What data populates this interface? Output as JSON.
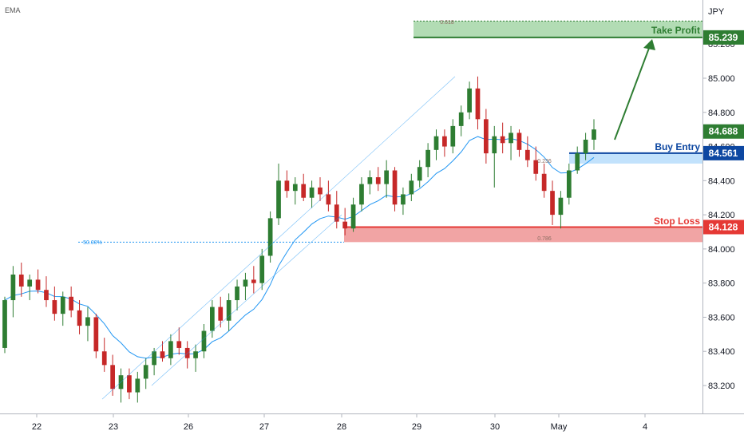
{
  "indicator_label": "EMA",
  "currency": "JPY",
  "colors": {
    "up": "#26a69a",
    "up_candle": "#2e7d32",
    "down": "#c62828",
    "ema": "#2196f3",
    "take_profit": "#2e7d32",
    "buy_entry": "#0d47a1",
    "stop_loss": "#e53935",
    "current": "#2e7d32"
  },
  "annotations": {
    "take_profit": {
      "label": "Take Profit",
      "price": "85.239"
    },
    "buy_entry": {
      "label": "Buy Entry",
      "price": "84.561"
    },
    "stop_loss": {
      "label": "Stop Loss",
      "price": "84.128"
    },
    "current_price": "84.688",
    "fib_top": "0.618",
    "fib_mid": "50.00%",
    "fib_buy": "0.236",
    "fib_stop": "0.786"
  },
  "chart_data": {
    "type": "candlestick",
    "instrument_unit": "JPY",
    "y_ticks": [
      "83.200",
      "83.400",
      "83.600",
      "83.800",
      "84.000",
      "84.200",
      "84.400",
      "84.600",
      "84.800",
      "85.000",
      "85.200"
    ],
    "ylim": [
      83.0,
      85.4
    ],
    "x_ticks": [
      "22",
      "23",
      "26",
      "27",
      "28",
      "29",
      "30",
      "May",
      "4"
    ],
    "levels": {
      "take_profit": 85.239,
      "take_profit_zone_top": 85.335,
      "buy_entry": 84.561,
      "buy_zone_bottom": 84.5,
      "stop_loss": 84.128,
      "stop_zone_bottom": 84.04,
      "fib_50": 84.04,
      "current": 84.688
    },
    "ohlc": [
      [
        83.42,
        83.72,
        83.39,
        83.7
      ],
      [
        83.7,
        83.9,
        83.6,
        83.85
      ],
      [
        83.85,
        83.92,
        83.72,
        83.78
      ],
      [
        83.78,
        83.85,
        83.7,
        83.82
      ],
      [
        83.82,
        83.88,
        83.74,
        83.76
      ],
      [
        83.76,
        83.84,
        83.66,
        83.7
      ],
      [
        83.7,
        83.78,
        83.58,
        83.62
      ],
      [
        83.62,
        83.75,
        83.55,
        83.72
      ],
      [
        83.72,
        83.78,
        83.6,
        83.64
      ],
      [
        83.64,
        83.7,
        83.5,
        83.55
      ],
      [
        83.55,
        83.66,
        83.46,
        83.6
      ],
      [
        83.6,
        83.62,
        83.36,
        83.4
      ],
      [
        83.4,
        83.48,
        83.28,
        83.32
      ],
      [
        83.32,
        83.38,
        83.14,
        83.18
      ],
      [
        83.18,
        83.3,
        83.1,
        83.26
      ],
      [
        83.26,
        83.3,
        83.12,
        83.16
      ],
      [
        83.16,
        83.28,
        83.1,
        83.24
      ],
      [
        83.24,
        83.36,
        83.18,
        83.32
      ],
      [
        83.32,
        83.42,
        83.26,
        83.4
      ],
      [
        83.4,
        83.46,
        83.34,
        83.36
      ],
      [
        83.36,
        83.5,
        83.32,
        83.46
      ],
      [
        83.46,
        83.54,
        83.38,
        83.42
      ],
      [
        83.42,
        83.46,
        83.3,
        83.36
      ],
      [
        83.36,
        83.44,
        83.28,
        83.4
      ],
      [
        83.4,
        83.56,
        83.36,
        83.52
      ],
      [
        83.52,
        83.7,
        83.48,
        83.66
      ],
      [
        83.66,
        83.72,
        83.54,
        83.58
      ],
      [
        83.58,
        83.74,
        83.52,
        83.7
      ],
      [
        83.7,
        83.82,
        83.64,
        83.78
      ],
      [
        83.78,
        83.86,
        83.7,
        83.82
      ],
      [
        83.82,
        83.9,
        83.74,
        83.8
      ],
      [
        83.8,
        84.0,
        83.76,
        83.96
      ],
      [
        83.96,
        84.22,
        83.92,
        84.18
      ],
      [
        84.18,
        84.5,
        84.14,
        84.4
      ],
      [
        84.4,
        84.46,
        84.3,
        84.34
      ],
      [
        84.34,
        84.42,
        84.26,
        84.38
      ],
      [
        84.38,
        84.44,
        84.28,
        84.3
      ],
      [
        84.3,
        84.4,
        84.24,
        84.36
      ],
      [
        84.36,
        84.42,
        84.28,
        84.32
      ],
      [
        84.32,
        84.4,
        84.22,
        84.26
      ],
      [
        84.26,
        84.34,
        84.12,
        84.16
      ],
      [
        84.16,
        84.24,
        84.08,
        84.12
      ],
      [
        84.12,
        84.3,
        84.1,
        84.26
      ],
      [
        84.26,
        84.42,
        84.22,
        84.38
      ],
      [
        84.38,
        84.46,
        84.32,
        84.42
      ],
      [
        84.42,
        84.48,
        84.34,
        84.38
      ],
      [
        84.38,
        84.52,
        84.3,
        84.46
      ],
      [
        84.46,
        84.48,
        84.22,
        84.26
      ],
      [
        84.26,
        84.36,
        84.2,
        84.32
      ],
      [
        84.32,
        84.44,
        84.28,
        84.4
      ],
      [
        84.4,
        84.52,
        84.36,
        84.48
      ],
      [
        84.48,
        84.62,
        84.42,
        84.58
      ],
      [
        84.58,
        84.7,
        84.52,
        84.66
      ],
      [
        84.66,
        84.7,
        84.54,
        84.6
      ],
      [
        84.6,
        84.76,
        84.56,
        84.72
      ],
      [
        84.72,
        84.84,
        84.66,
        84.8
      ],
      [
        84.8,
        84.98,
        84.76,
        84.94
      ],
      [
        84.94,
        85.01,
        84.7,
        84.76
      ],
      [
        84.76,
        84.82,
        84.5,
        84.56
      ],
      [
        84.56,
        84.72,
        84.36,
        84.66
      ],
      [
        84.66,
        84.74,
        84.56,
        84.62
      ],
      [
        84.62,
        84.72,
        84.52,
        84.68
      ],
      [
        84.68,
        84.7,
        84.54,
        84.58
      ],
      [
        84.58,
        84.66,
        84.48,
        84.52
      ],
      [
        84.52,
        84.6,
        84.4,
        84.44
      ],
      [
        84.44,
        84.5,
        84.3,
        84.34
      ],
      [
        84.34,
        84.4,
        84.14,
        84.2
      ],
      [
        84.2,
        84.34,
        84.12,
        84.3
      ],
      [
        84.3,
        84.5,
        84.26,
        84.46
      ],
      [
        84.46,
        84.6,
        84.44,
        84.56
      ],
      [
        84.56,
        84.68,
        84.52,
        84.64
      ],
      [
        84.64,
        84.76,
        84.58,
        84.7
      ]
    ]
  }
}
